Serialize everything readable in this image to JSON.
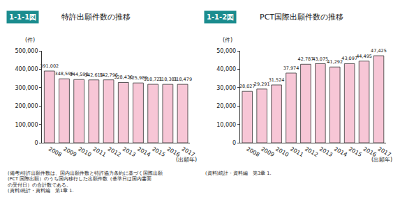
{
  "chart_data": [
    {
      "type": "bar",
      "figure_label": "1-1-1図",
      "title": "特許出願件数の推移",
      "y_label": "(件)",
      "x_label": "(出願年)",
      "categories": [
        "2008",
        "2009",
        "2010",
        "2011",
        "2012",
        "2013",
        "2014",
        "2015",
        "2016",
        "2017"
      ],
      "values": [
        391002,
        348596,
        344598,
        342610,
        342796,
        328436,
        325989,
        318721,
        318381,
        318479
      ],
      "value_labels": [
        "391,002",
        "348,596",
        "344,598",
        "342,610",
        "342,796",
        "328,436",
        "325,989",
        "318,721",
        "318,381",
        "318,479"
      ],
      "color": "#f7c6d6",
      "data_labels": true,
      "grid": false,
      "ylim": [
        0,
        500000
      ],
      "yticks": [
        0,
        {
          "value": 100000,
          "label": "100,000"
        },
        {
          "value": 200000,
          "label": "200,000"
        },
        {
          "value": 300000,
          "label": "300,000"
        },
        {
          "value": 400000,
          "label": "400,000"
        },
        {
          "value": 500000,
          "label": "500,000"
        }
      ],
      "notes": [
        "(備考)特許出願件数は、国内出願件数と特許協力条約に基づく国際出願",
        "(PCT 国際出願）のうち国内移行した出願件数（基準日は国内書面",
        "の受付日）の合計数である。",
        "(資料)統計・資料編　第1章 1."
      ]
    },
    {
      "type": "bar",
      "figure_label": "1-1-2図",
      "title": "PCT国際出願件数の推移",
      "y_label": "(件)",
      "x_label": "(出願年)",
      "categories": [
        "2008",
        "2009",
        "2010",
        "2011",
        "2012",
        "2013",
        "2014",
        "2015",
        "2016",
        "2017"
      ],
      "values": [
        28027,
        29291,
        31524,
        37974,
        42787,
        43075,
        41292,
        43097,
        44495,
        47425
      ],
      "value_labels": [
        "28,027",
        "29,291",
        "31,524",
        "37,974",
        "42,787",
        "43,075",
        "41,292",
        "43,097",
        "44,495",
        "47,425"
      ],
      "color": "#f7c6d6",
      "data_labels": true,
      "grid": false,
      "ylim": [
        0,
        50000
      ],
      "yticks": [
        0,
        {
          "value": 10000,
          "label": "10,000"
        },
        {
          "value": 20000,
          "label": "20,000"
        },
        {
          "value": 30000,
          "label": "30,000"
        },
        {
          "value": 40000,
          "label": "40,000"
        },
        {
          "value": 50000,
          "label": "50,000"
        }
      ],
      "notes": [
        "(資料)統計・資料編　第3章 1."
      ]
    }
  ]
}
